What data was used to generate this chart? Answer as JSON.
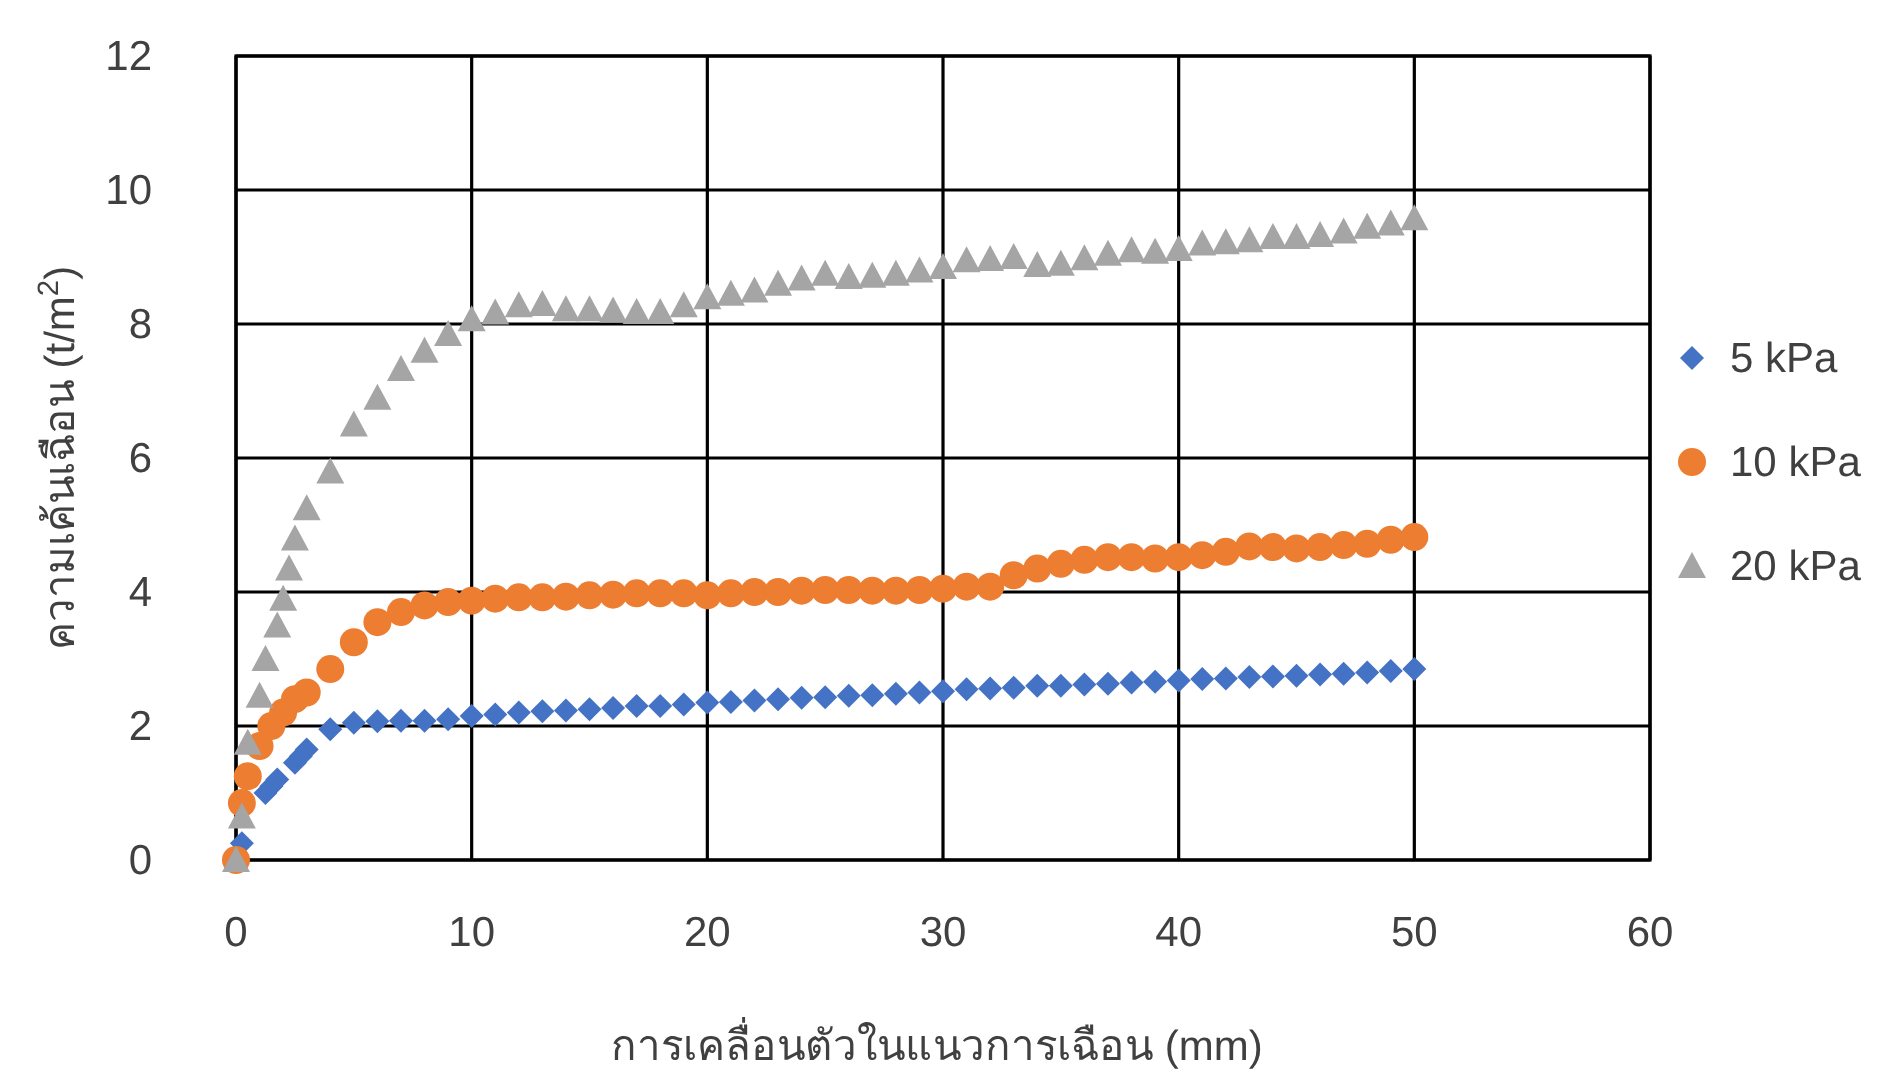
{
  "chart_data": {
    "type": "scatter",
    "xlabel": "การเคลื่อนตัวในแนวการเฉือน (mm)",
    "ylabel": "ความเค้นเฉือน (t/m$^{2}$)",
    "xlim": [
      0,
      60
    ],
    "xticks": [
      0,
      10,
      20,
      30,
      40,
      50,
      60
    ],
    "ylim": [
      0,
      12
    ],
    "yticks": [
      0,
      2,
      4,
      6,
      8,
      10,
      12
    ],
    "grid": true,
    "legend": "right",
    "series": [
      {
        "name": "5 kPa",
        "color": "#4472c4",
        "marker": "diamond",
        "x": [
          0.25,
          1.25,
          1.5,
          1.75,
          2.5,
          2.75,
          3,
          4,
          5,
          6,
          7,
          8,
          9,
          10,
          11,
          12,
          13,
          14,
          15,
          16,
          17,
          18,
          19,
          20,
          21,
          22,
          23,
          24,
          25,
          26,
          27,
          28,
          29,
          30,
          31,
          32,
          33,
          34,
          35,
          36,
          37,
          38,
          39,
          40,
          41,
          42,
          43,
          44,
          45,
          46,
          47,
          48,
          49,
          50
        ],
        "values": [
          0.25,
          1.0,
          1.1,
          1.2,
          1.45,
          1.55,
          1.65,
          1.95,
          2.05,
          2.07,
          2.08,
          2.08,
          2.1,
          2.15,
          2.17,
          2.2,
          2.22,
          2.23,
          2.25,
          2.27,
          2.3,
          2.3,
          2.32,
          2.35,
          2.36,
          2.38,
          2.4,
          2.42,
          2.43,
          2.45,
          2.46,
          2.48,
          2.5,
          2.52,
          2.55,
          2.56,
          2.57,
          2.6,
          2.6,
          2.62,
          2.63,
          2.65,
          2.66,
          2.68,
          2.7,
          2.71,
          2.73,
          2.74,
          2.75,
          2.77,
          2.78,
          2.8,
          2.82,
          2.85
        ]
      },
      {
        "name": "10 kPa",
        "color": "#ed7d31",
        "marker": "circle",
        "x": [
          0,
          0.25,
          0.5,
          1,
          1.5,
          2,
          2.5,
          3,
          4,
          5,
          6,
          7,
          8,
          9,
          10,
          11,
          12,
          13,
          14,
          15,
          16,
          17,
          18,
          19,
          20,
          21,
          22,
          23,
          24,
          25,
          26,
          27,
          28,
          29,
          30,
          31,
          32,
          33,
          34,
          35,
          36,
          37,
          38,
          39,
          40,
          41,
          42,
          43,
          44,
          45,
          46,
          47,
          48,
          49,
          50
        ],
        "values": [
          0,
          0.85,
          1.25,
          1.7,
          2.0,
          2.2,
          2.4,
          2.5,
          2.85,
          3.25,
          3.55,
          3.7,
          3.8,
          3.85,
          3.87,
          3.9,
          3.92,
          3.92,
          3.93,
          3.95,
          3.96,
          3.98,
          3.98,
          3.98,
          3.95,
          3.98,
          4.0,
          4.0,
          4.02,
          4.03,
          4.03,
          4.02,
          4.02,
          4.03,
          4.05,
          4.08,
          4.08,
          4.25,
          4.35,
          4.42,
          4.48,
          4.52,
          4.52,
          4.5,
          4.52,
          4.55,
          4.6,
          4.68,
          4.67,
          4.65,
          4.67,
          4.7,
          4.72,
          4.78,
          4.82
        ]
      },
      {
        "name": "20 kPa",
        "color": "#a5a5a5",
        "marker": "triangle",
        "x": [
          0,
          0.25,
          0.5,
          1,
          1.25,
          1.75,
          2,
          2.25,
          2.5,
          3,
          4,
          5,
          6,
          7,
          8,
          9,
          10,
          11,
          12,
          13,
          14,
          15,
          16,
          17,
          18,
          19,
          20,
          21,
          22,
          23,
          24,
          25,
          26,
          27,
          28,
          29,
          30,
          31,
          32,
          33,
          34,
          35,
          36,
          37,
          38,
          39,
          40,
          41,
          42,
          43,
          44,
          45,
          46,
          47,
          48,
          49,
          50
        ],
        "values": [
          0,
          0.65,
          1.75,
          2.45,
          3.0,
          3.5,
          3.9,
          4.35,
          4.8,
          5.25,
          5.8,
          6.5,
          6.9,
          7.33,
          7.6,
          7.85,
          8.07,
          8.17,
          8.28,
          8.3,
          8.22,
          8.22,
          8.2,
          8.18,
          8.18,
          8.28,
          8.4,
          8.45,
          8.5,
          8.6,
          8.68,
          8.75,
          8.7,
          8.72,
          8.75,
          8.8,
          8.85,
          8.95,
          8.97,
          9.0,
          8.88,
          8.9,
          8.98,
          9.05,
          9.1,
          9.08,
          9.12,
          9.2,
          9.22,
          9.25,
          9.3,
          9.3,
          9.33,
          9.38,
          9.45,
          9.5,
          9.58
        ]
      }
    ]
  }
}
